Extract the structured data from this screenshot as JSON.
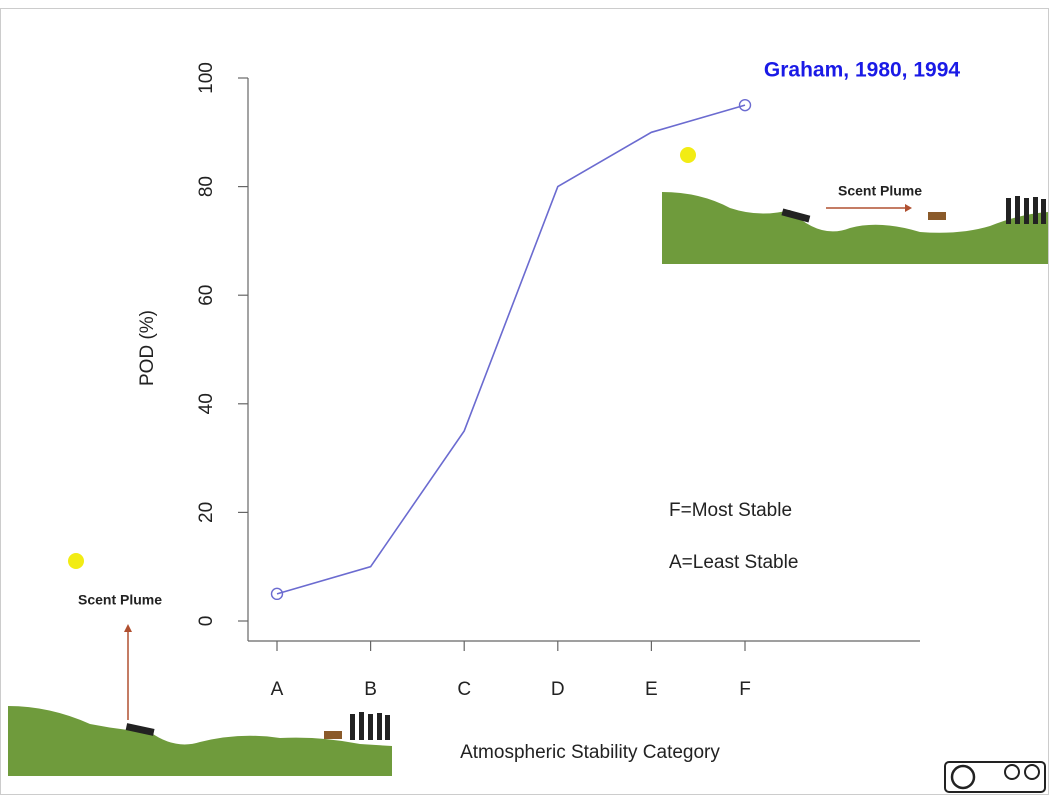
{
  "chart_data": {
    "type": "line",
    "xlabel": "Atmospheric Stability Category",
    "ylabel": "POD (%)",
    "categories": [
      "A",
      "B",
      "C",
      "D",
      "E",
      "F"
    ],
    "values": [
      5,
      10,
      35,
      80,
      90,
      95
    ],
    "color": "#6b6bd0",
    "ylim": [
      0,
      100
    ],
    "yticks": [
      0,
      20,
      40,
      60,
      80,
      100
    ],
    "annotations": [
      "Graham, 1980, 1994",
      "F=Most Stable",
      "A=Least Stable",
      "Scent Plume",
      "Scent Plume"
    ]
  }
}
